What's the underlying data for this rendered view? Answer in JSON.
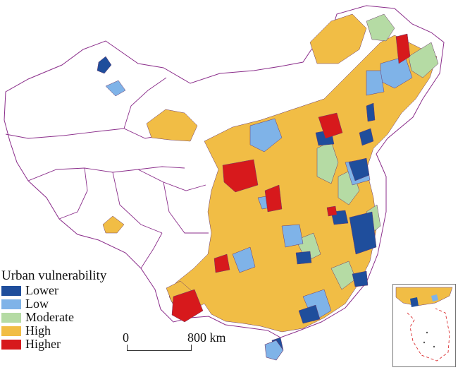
{
  "legend": {
    "title": "Urban vulnerability",
    "items": [
      {
        "label": "Lower",
        "color": "#1f4e9c"
      },
      {
        "label": "Low",
        "color": "#7fb3e8"
      },
      {
        "label": "Moderate",
        "color": "#b5dba4"
      },
      {
        "label": "High",
        "color": "#f1bd45"
      },
      {
        "label": "Higher",
        "color": "#d7191c"
      }
    ]
  },
  "scale": {
    "zero": "0",
    "distance": "800 km"
  },
  "colors": {
    "boundary": "#8b2e8b",
    "land": "#ffffff",
    "inset_border": "#777777"
  }
}
